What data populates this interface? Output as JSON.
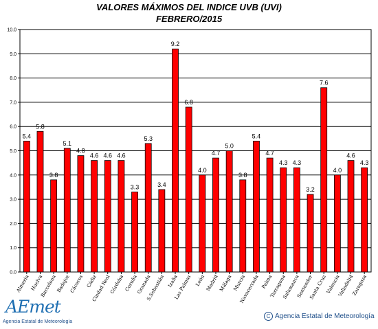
{
  "header": {
    "title": "VALORES MÁXIMOS DEL INDICE UVB (UVI)",
    "subtitle": "FEBRERO/2015"
  },
  "footer": {
    "logo_text": "AEmet",
    "logo_subtext": "Agencia Estatal de Meteorología",
    "copyright_symbol": "C",
    "copyright": "Agencia Estatal de Meteorología"
  },
  "colors": {
    "bar": "#ff0000",
    "bar_border": "#000000",
    "grid": "#000000"
  },
  "chart_data": {
    "type": "bar",
    "title": "VALORES MÁXIMOS DEL INDICE UVB (UVI)",
    "subtitle": "FEBRERO/2015",
    "ylim": [
      0,
      10
    ],
    "yticks": [
      "0.0",
      "1.0",
      "2.0",
      "3.0",
      "4.0",
      "5.0",
      "6.0",
      "7.0",
      "8.0",
      "9.0",
      "10.0"
    ],
    "grid": true,
    "categories": [
      "Almería",
      "Huelva",
      "Barcelona",
      "Badajoz",
      "Cáceres",
      "Cádiz",
      "Ciudad Real",
      "Córdoba",
      "Coruña",
      "Granada",
      "S.Sebastián",
      "Izaña",
      "Las Palmas",
      "León",
      "Madrid",
      "Málaga",
      "Murcia",
      "Navacerrada",
      "Palma",
      "Tarragona",
      "Salamanca",
      "Santander",
      "Santa Cruz",
      "Valencia",
      "Valladolid",
      "Zaragoza"
    ],
    "values": [
      5.4,
      5.8,
      3.8,
      5.1,
      4.8,
      4.6,
      4.6,
      4.6,
      3.3,
      5.3,
      3.4,
      9.2,
      6.8,
      4.0,
      4.7,
      5.0,
      3.8,
      5.4,
      4.7,
      4.3,
      4.3,
      3.2,
      7.6,
      4.0,
      4.6,
      4.3
    ],
    "value_labels": [
      "5.4",
      "5.8",
      "3.8",
      "5.1",
      "4.8",
      "4.6",
      "4.6",
      "4.6",
      "3.3",
      "5.3",
      "3.4",
      "9.2",
      "6.8",
      "4.0",
      "4.7",
      "5.0",
      "3.8",
      "5.4",
      "4.7",
      "4.3",
      "4.3",
      "3.2",
      "7.6",
      "4.0",
      "4.6",
      "4.3"
    ]
  }
}
